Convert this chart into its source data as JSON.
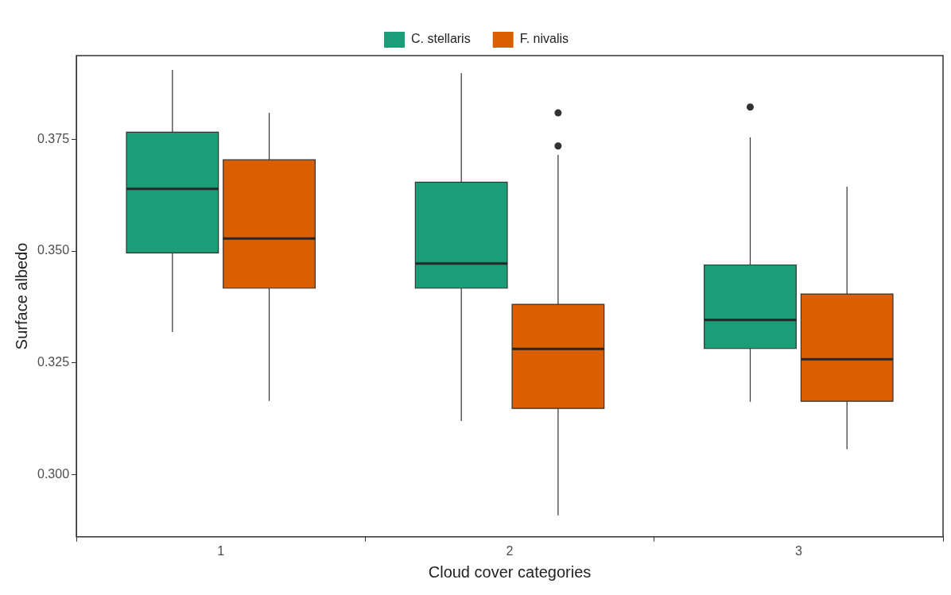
{
  "chart_data": {
    "type": "box",
    "xlabel": "Cloud cover categories",
    "ylabel": "Surface albedo",
    "categories": [
      "1",
      "2",
      "3"
    ],
    "series": [
      {
        "name": "C. stellaris",
        "color": "#1b9e77",
        "boxes": [
          {
            "low": 0.3319,
            "q1": 0.3496,
            "median": 0.3639,
            "q3": 0.3766,
            "high": 0.3905
          },
          {
            "low": 0.312,
            "q1": 0.3417,
            "median": 0.3472,
            "q3": 0.3654,
            "high": 0.3898
          },
          {
            "low": 0.3163,
            "q1": 0.3282,
            "median": 0.3346,
            "q3": 0.3469,
            "high": 0.3754,
            "outliers": [
              0.3822
            ]
          }
        ]
      },
      {
        "name": "F. nivalis",
        "color": "#d95f02",
        "boxes": [
          {
            "low": 0.3165,
            "q1": 0.3417,
            "median": 0.3528,
            "q3": 0.3704,
            "high": 0.3809
          },
          {
            "low": 0.2909,
            "q1": 0.3148,
            "median": 0.3281,
            "q3": 0.3381,
            "high": 0.3715,
            "outliers": [
              0.3809,
              0.3735
            ]
          },
          {
            "low": 0.3057,
            "q1": 0.3164,
            "median": 0.3258,
            "q3": 0.3404,
            "high": 0.3644
          }
        ]
      }
    ],
    "ylim": [
      0.2861,
      0.3937
    ],
    "yticks": [
      {
        "value": 0.3,
        "label": "0.300"
      },
      {
        "value": 0.325,
        "label": "0.325"
      },
      {
        "value": 0.35,
        "label": "0.350"
      },
      {
        "value": 0.375,
        "label": "0.375"
      }
    ],
    "grid": false,
    "legend": "top"
  }
}
